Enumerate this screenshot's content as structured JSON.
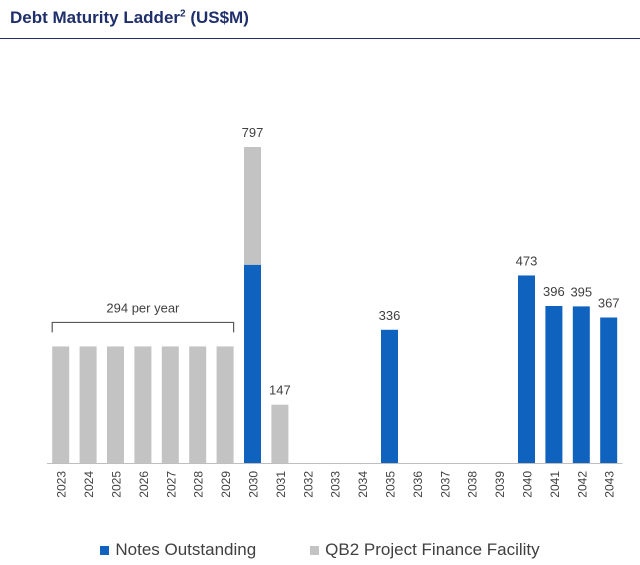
{
  "title": {
    "main": "Debt Maturity Ladder",
    "superscript": "2",
    "unit": " (US$M)"
  },
  "colors": {
    "notes": "#0f62bd",
    "qb2": "#c3c3c3",
    "title": "#1f2f6b",
    "text": "#404040"
  },
  "chart_data": {
    "type": "bar",
    "stacked": true,
    "categories": [
      "2023",
      "2024",
      "2025",
      "2026",
      "2027",
      "2028",
      "2029",
      "2030",
      "2031",
      "2032",
      "2033",
      "2034",
      "2035",
      "2036",
      "2037",
      "2038",
      "2039",
      "2040",
      "2041",
      "2042",
      "2043"
    ],
    "series": [
      {
        "name": "Notes Outstanding",
        "values": [
          0,
          0,
          0,
          0,
          0,
          0,
          0,
          500,
          0,
          0,
          0,
          0,
          336,
          0,
          0,
          0,
          0,
          473,
          396,
          395,
          367
        ]
      },
      {
        "name": "QB2 Project Finance Facility",
        "values": [
          294,
          294,
          294,
          294,
          294,
          294,
          294,
          297,
          147,
          0,
          0,
          0,
          0,
          0,
          0,
          0,
          0,
          0,
          0,
          0,
          0
        ]
      }
    ],
    "totals_labels": [
      {
        "category": "2030",
        "text": "797"
      },
      {
        "category": "2031",
        "text": "147"
      },
      {
        "category": "2035",
        "text": "336"
      },
      {
        "category": "2040",
        "text": "473"
      },
      {
        "category": "2041",
        "text": "396"
      },
      {
        "category": "2042",
        "text": "395"
      },
      {
        "category": "2043",
        "text": "367"
      }
    ],
    "annotation": {
      "text": "294 per year",
      "from": "2023",
      "to": "2029"
    },
    "ylim": [
      0,
      850
    ],
    "grid": false,
    "legend": "bottom"
  }
}
